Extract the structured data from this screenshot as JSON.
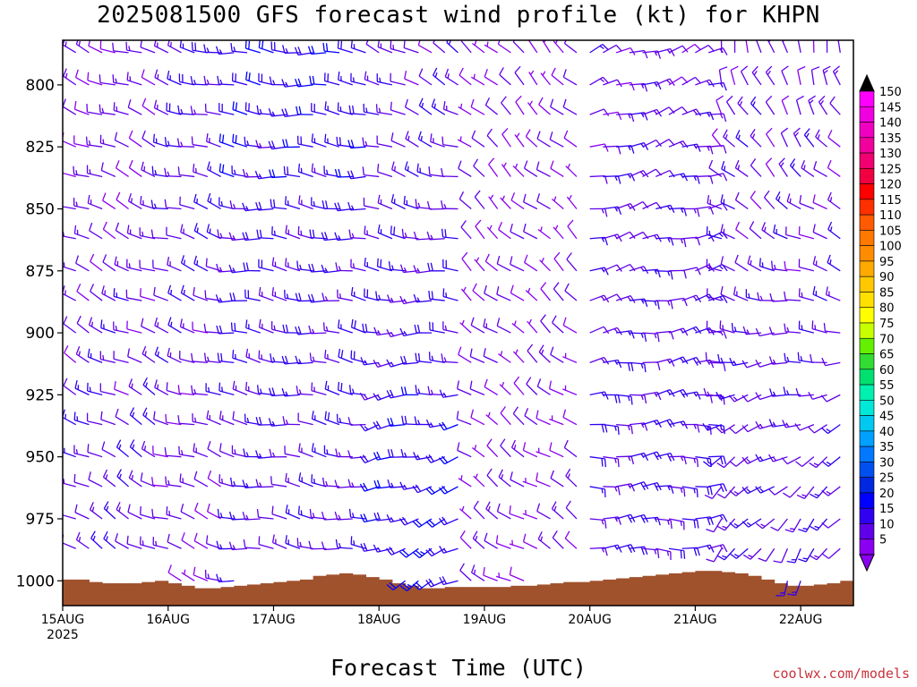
{
  "chart_data": {
    "type": "wind-barb-profile",
    "title": "2025081500 GFS forecast wind profile (kt) for KHPN",
    "xlabel": "Forecast Time (UTC)",
    "credit": "coolwx.com/models",
    "y_axis": {
      "label": "",
      "ticks": [
        "800",
        "825",
        "850",
        "875",
        "900",
        "925",
        "950",
        "975",
        "1000"
      ],
      "levels_plotted": [
        787,
        800,
        812,
        825,
        837,
        850,
        862,
        875,
        887,
        900,
        912,
        925,
        937,
        950,
        962,
        975,
        987,
        1000
      ],
      "range_hpa": [
        782,
        1010
      ],
      "direction": "inverted"
    },
    "x_axis": {
      "start": "15AUG",
      "start_year": "2025",
      "ticks": [
        "15AUG",
        "16AUG",
        "17AUG",
        "18AUG",
        "19AUG",
        "20AUG",
        "21AUG",
        "22AUG"
      ],
      "range_days": [
        0,
        7.5
      ],
      "step_hours": 3
    },
    "colorbar": {
      "levels": [
        "150",
        "145",
        "140",
        "135",
        "130",
        "125",
        "120",
        "115",
        "110",
        "105",
        "100",
        "95",
        "90",
        "85",
        "80",
        "75",
        "70",
        "65",
        "60",
        "55",
        "50",
        "45",
        "40",
        "35",
        "30",
        "25",
        "20",
        "15",
        "10",
        "5"
      ],
      "colors": [
        "#ff00ff",
        "#f000e0",
        "#f000c0",
        "#f0009c",
        "#f00070",
        "#f00040",
        "#ff0000",
        "#ff3000",
        "#ff5a00",
        "#ff7800",
        "#ff8c00",
        "#ffaa00",
        "#ffc800",
        "#ffe000",
        "#ffff00",
        "#c8ff00",
        "#64f000",
        "#32dc32",
        "#00e070",
        "#00f0b0",
        "#00e8d8",
        "#00c8f0",
        "#00a0ff",
        "#0078ff",
        "#0050f0",
        "#0028e0",
        "#0000ff",
        "#3000f0",
        "#6000e8",
        "#8a00f0"
      ]
    },
    "terrain": {
      "color": "#a0522d",
      "surface_pressure_hpa": [
        999.5,
        999.5,
        1000.5,
        1001,
        1001,
        1001,
        1000.5,
        1000,
        1001,
        1002,
        1003,
        1003,
        1002.5,
        1002,
        1001.5,
        1001,
        1000.5,
        1000,
        999.5,
        998,
        997.5,
        997,
        997.5,
        998.5,
        999.5,
        1001,
        1002,
        1003,
        1003,
        1002.5,
        1002.5,
        1002.5,
        1002.5,
        1002.5,
        1002,
        1002,
        1001.5,
        1001,
        1000.5,
        1000.5,
        1000,
        999.5,
        999,
        998.5,
        998,
        997.5,
        997,
        996.5,
        996,
        996,
        996.5,
        997,
        998,
        999.5,
        1001,
        1002,
        1002,
        1001.5,
        1001,
        1000
      ]
    },
    "wind_regimes": [
      {
        "x_days": [
          0,
          1.0
        ],
        "dir_sfc": 300,
        "dir_top": 290,
        "spd_sfc": 14,
        "spd_top": 11
      },
      {
        "x_days": [
          1.0,
          1.6
        ],
        "dir_sfc": 290,
        "dir_top": 285,
        "spd_sfc": 10,
        "spd_top": 16
      },
      {
        "x_days": [
          1.6,
          2.9
        ],
        "dir_sfc": 280,
        "dir_top": 275,
        "spd_sfc": 13,
        "spd_top": 19
      },
      {
        "x_days": [
          2.9,
          3.8
        ],
        "dir_sfc": 240,
        "dir_top": 300,
        "spd_sfc": 21,
        "spd_top": 12
      },
      {
        "x_days": [
          3.8,
          5.0
        ],
        "dir_sfc": 300,
        "dir_top": 315,
        "spd_sfc": 10,
        "spd_top": 9
      },
      {
        "x_days": [
          5.0,
          6.2
        ],
        "dir_sfc": 90,
        "dir_top": 70,
        "spd_sfc": 17,
        "spd_top": 12
      },
      {
        "x_days": [
          6.2,
          7.5
        ],
        "dir_sfc": 200,
        "dir_top": 350,
        "spd_sfc": 14,
        "spd_top": 12
      }
    ]
  }
}
